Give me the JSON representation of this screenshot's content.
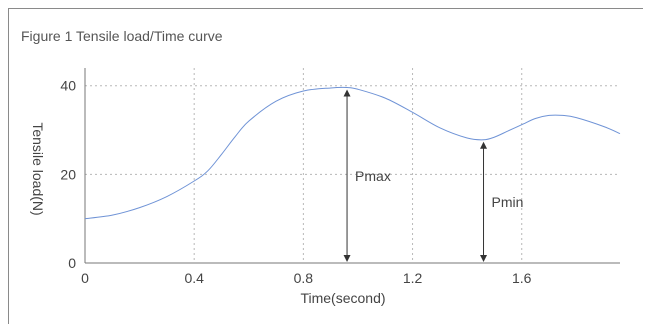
{
  "figure": {
    "caption": "Figure 1 Tensile load/Time curve"
  },
  "chart_data": {
    "type": "line",
    "xlabel": "Time(second)",
    "ylabel": "Tensile load(N)",
    "xlim": [
      0,
      1.96
    ],
    "ylim": [
      0,
      44
    ],
    "x_ticks": [
      "0",
      "0.4",
      "0.8",
      "1.2",
      "1.6"
    ],
    "y_ticks": [
      "0",
      "20",
      "40"
    ],
    "x_tick_values": [
      0,
      0.4,
      0.8,
      1.2,
      1.6
    ],
    "y_tick_values": [
      0,
      20,
      40
    ],
    "grid": true,
    "series": [
      {
        "color": "#6f93d6",
        "x": [
          0,
          0.1,
          0.2,
          0.3,
          0.4,
          0.45,
          0.5,
          0.55,
          0.6,
          0.7,
          0.8,
          0.9,
          0.96,
          1.0,
          1.1,
          1.2,
          1.3,
          1.4,
          1.46,
          1.5,
          1.55,
          1.6,
          1.65,
          1.7,
          1.75,
          1.8,
          1.9,
          1.96
        ],
        "y": [
          10,
          10.8,
          12.5,
          15,
          18.5,
          20.8,
          24.5,
          28.5,
          32,
          36.5,
          38.8,
          39.5,
          39.6,
          39.2,
          37.2,
          34,
          30.5,
          28.2,
          27.8,
          28.4,
          29.8,
          31.2,
          32.6,
          33.3,
          33.3,
          32.8,
          30.8,
          29.2
        ]
      }
    ],
    "annotations": [
      {
        "label": "Pmax",
        "x": 0.96,
        "y_from": 0,
        "y_to": 39.6
      },
      {
        "label": "Pmin",
        "x": 1.46,
        "y_from": 0,
        "y_to": 27.8
      }
    ]
  }
}
